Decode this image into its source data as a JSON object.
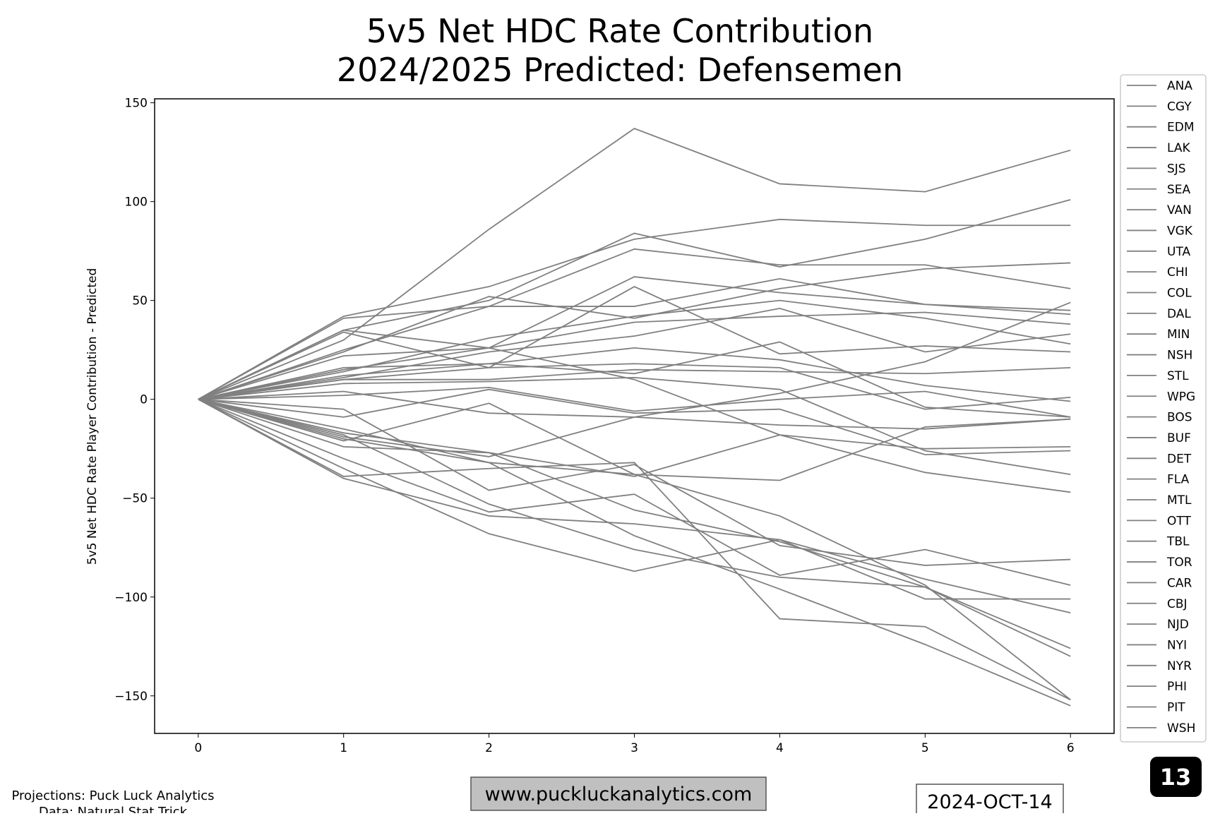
{
  "chart_data": {
    "type": "line",
    "title": "5v5 Net HDC Rate Contribution",
    "subtitle": "2024/2025 Predicted: Defensemen",
    "xlabel": "",
    "ylabel": "5v5 Net HDC Rate Player Contribution - Predicted",
    "x": [
      0,
      1,
      2,
      3,
      4,
      5,
      6
    ],
    "xticks": [
      "0",
      "1",
      "2",
      "3",
      "4",
      "5",
      "6"
    ],
    "yticks": [
      150,
      100,
      50,
      0,
      -50,
      -100,
      -150
    ],
    "ytick_labels": [
      "150",
      "100",
      "50",
      "0",
      "−50",
      "−100",
      "−150"
    ],
    "xlim": [
      -0.3,
      6.3
    ],
    "ylim": [
      -169,
      152
    ],
    "grid": false,
    "legend_position": "right-outside",
    "line_color": "#808080",
    "series": [
      {
        "name": "ANA",
        "values": [
          0,
          30,
          86,
          137,
          109,
          105,
          126
        ]
      },
      {
        "name": "CGY",
        "values": [
          0,
          35,
          50,
          84,
          67,
          81,
          101
        ]
      },
      {
        "name": "EDM",
        "values": [
          0,
          42,
          57,
          81,
          91,
          88,
          88
        ]
      },
      {
        "name": "LAK",
        "values": [
          0,
          25,
          47,
          76,
          68,
          68,
          56
        ]
      },
      {
        "name": "SJS",
        "values": [
          0,
          24,
          52,
          41,
          56,
          66,
          69
        ]
      },
      {
        "name": "SEA",
        "values": [
          0,
          41,
          47,
          47,
          61,
          48,
          43
        ]
      },
      {
        "name": "VAN",
        "values": [
          0,
          15,
          26,
          62,
          54,
          48,
          45
        ]
      },
      {
        "name": "VGK",
        "values": [
          0,
          34,
          16,
          57,
          23,
          27,
          24
        ]
      },
      {
        "name": "UTA",
        "values": [
          0,
          22,
          26,
          39,
          42,
          44,
          38
        ]
      },
      {
        "name": "CHI",
        "values": [
          0,
          14,
          31,
          42,
          50,
          41,
          28
        ]
      },
      {
        "name": "COL",
        "values": [
          0,
          11,
          24,
          32,
          46,
          24,
          33
        ]
      },
      {
        "name": "DAL",
        "values": [
          0,
          35,
          26,
          10,
          -18,
          -37,
          -47
        ]
      },
      {
        "name": "MIN",
        "values": [
          0,
          12,
          18,
          26,
          20,
          7,
          -1
        ]
      },
      {
        "name": "NSH",
        "values": [
          0,
          16,
          18,
          13,
          29,
          -4,
          -9
        ]
      },
      {
        "name": "STL",
        "values": [
          0,
          10,
          16,
          18,
          16,
          -5,
          1
        ]
      },
      {
        "name": "WPG",
        "values": [
          0,
          10,
          10,
          15,
          14,
          13,
          16
        ]
      },
      {
        "name": "BOS",
        "values": [
          0,
          8,
          9,
          11,
          5,
          -26,
          -38
        ]
      },
      {
        "name": "BUF",
        "values": [
          0,
          4,
          -7,
          -9,
          -13,
          -15,
          -10
        ]
      },
      {
        "name": "DET",
        "values": [
          0,
          2,
          6,
          -6,
          0,
          4,
          -9
        ]
      },
      {
        "name": "FLA",
        "values": [
          0,
          -9,
          5,
          -7,
          -5,
          -28,
          -26
        ]
      },
      {
        "name": "MTL",
        "values": [
          0,
          -20,
          -32,
          -38,
          -41,
          -14,
          -10
        ]
      },
      {
        "name": "OTT",
        "values": [
          0,
          -17,
          -27,
          -39,
          -18,
          -25,
          -24
        ]
      },
      {
        "name": "TBL",
        "values": [
          0,
          -19,
          -29,
          -9,
          3,
          19,
          49
        ]
      },
      {
        "name": "TOR",
        "values": [
          0,
          -5,
          -46,
          -33,
          -74,
          -84,
          -81
        ]
      },
      {
        "name": "CAR",
        "values": [
          0,
          -18,
          -53,
          -76,
          -90,
          -95,
          -130
        ]
      },
      {
        "name": "CBJ",
        "values": [
          0,
          -24,
          -27,
          -56,
          -72,
          -95,
          -126
        ]
      },
      {
        "name": "NJD",
        "values": [
          0,
          -15,
          -32,
          -69,
          -96,
          -124,
          -155
        ]
      },
      {
        "name": "NYI",
        "values": [
          0,
          -40,
          -59,
          -63,
          -71,
          -91,
          -108
        ]
      },
      {
        "name": "NYR",
        "values": [
          0,
          -35,
          -68,
          -87,
          -71,
          -101,
          -101
        ]
      },
      {
        "name": "PHI",
        "values": [
          0,
          -30,
          -57,
          -48,
          -89,
          -76,
          -94
        ]
      },
      {
        "name": "PIT",
        "values": [
          0,
          -21,
          -2,
          -38,
          -59,
          -94,
          -152
        ]
      },
      {
        "name": "WSH",
        "values": [
          0,
          -39,
          -35,
          -32,
          -111,
          -115,
          -152
        ]
      }
    ]
  },
  "footer": {
    "credits_line1": "Projections: Puck Luck Analytics",
    "credits_line2": "Data: Natural Stat Trick",
    "website": "www.puckluckanalytics.com",
    "date": "2024-OCT-14",
    "badge": "13"
  }
}
